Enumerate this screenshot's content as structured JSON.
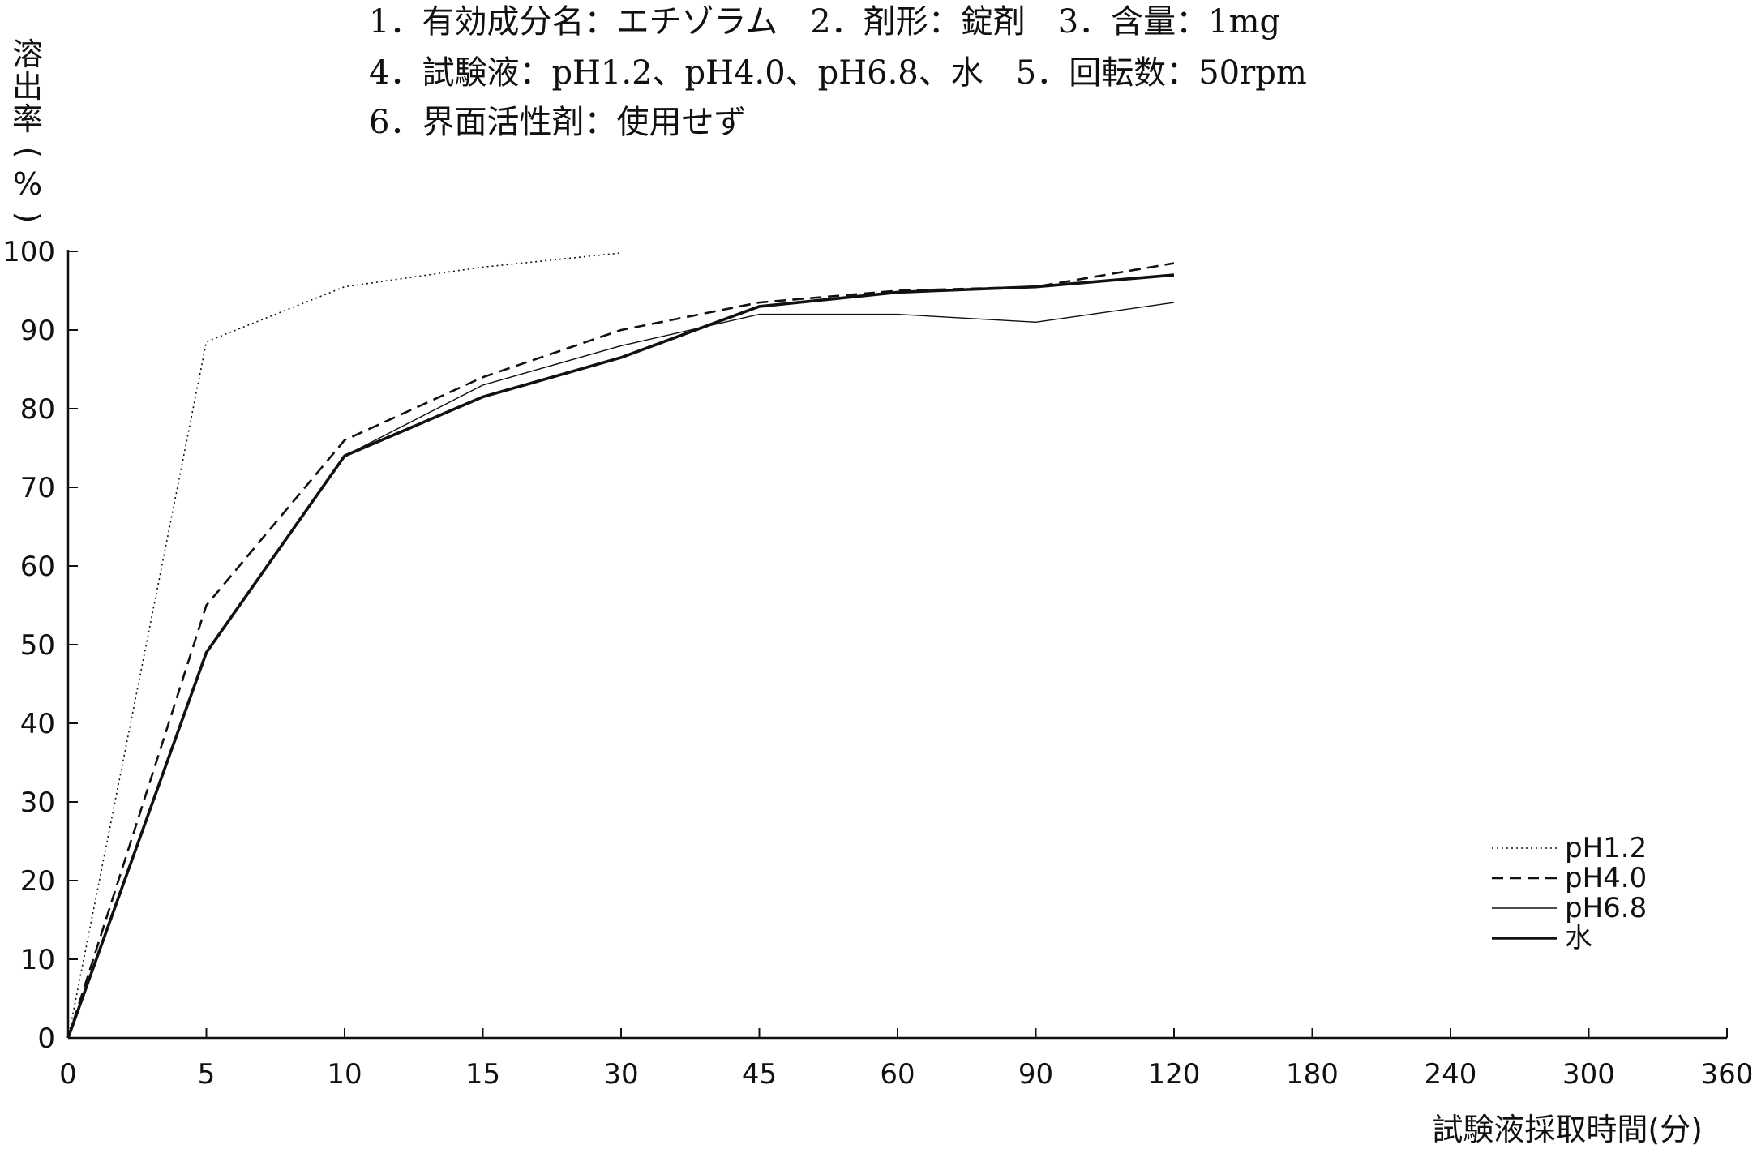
{
  "header": {
    "lines": [
      "1．有効成分名：エチゾラム　2．剤形：錠剤　3．含量：1mg",
      "4．試験液：pH1.2、pH4.0、pH6.8、水　5．回転数：50rpm",
      "6．界面活性剤：使用せず"
    ]
  },
  "chart_data": {
    "type": "line",
    "ylabel": "溶出率(%)",
    "xlabel": "試験液採取時間(分)",
    "categories": [
      "0",
      "5",
      "10",
      "15",
      "30",
      "45",
      "60",
      "90",
      "120",
      "180",
      "240",
      "300",
      "360"
    ],
    "yticks": [
      "0",
      "10",
      "20",
      "30",
      "40",
      "50",
      "60",
      "70",
      "80",
      "90",
      "100"
    ],
    "ylim": [
      0,
      100
    ],
    "grid": false,
    "legend_position": "bottom-right",
    "series": [
      {
        "name": "pH1.2",
        "style": "dotted",
        "values": [
          0,
          88.5,
          95.5,
          98,
          99.8,
          null,
          null,
          null,
          null,
          null,
          null,
          null,
          null
        ]
      },
      {
        "name": "pH4.0",
        "style": "dashed",
        "values": [
          0,
          55,
          76,
          84,
          90,
          93.5,
          95,
          95.5,
          98.5,
          null,
          null,
          null,
          null
        ]
      },
      {
        "name": "pH6.8",
        "style": "thin",
        "values": [
          0,
          49,
          74,
          83,
          88,
          92,
          92,
          91,
          93.5,
          null,
          null,
          null,
          null
        ]
      },
      {
        "name": "水",
        "style": "thick",
        "values": [
          0,
          49,
          74,
          81.5,
          86.5,
          93,
          94.8,
          95.5,
          97,
          null,
          null,
          null,
          null
        ]
      }
    ]
  }
}
